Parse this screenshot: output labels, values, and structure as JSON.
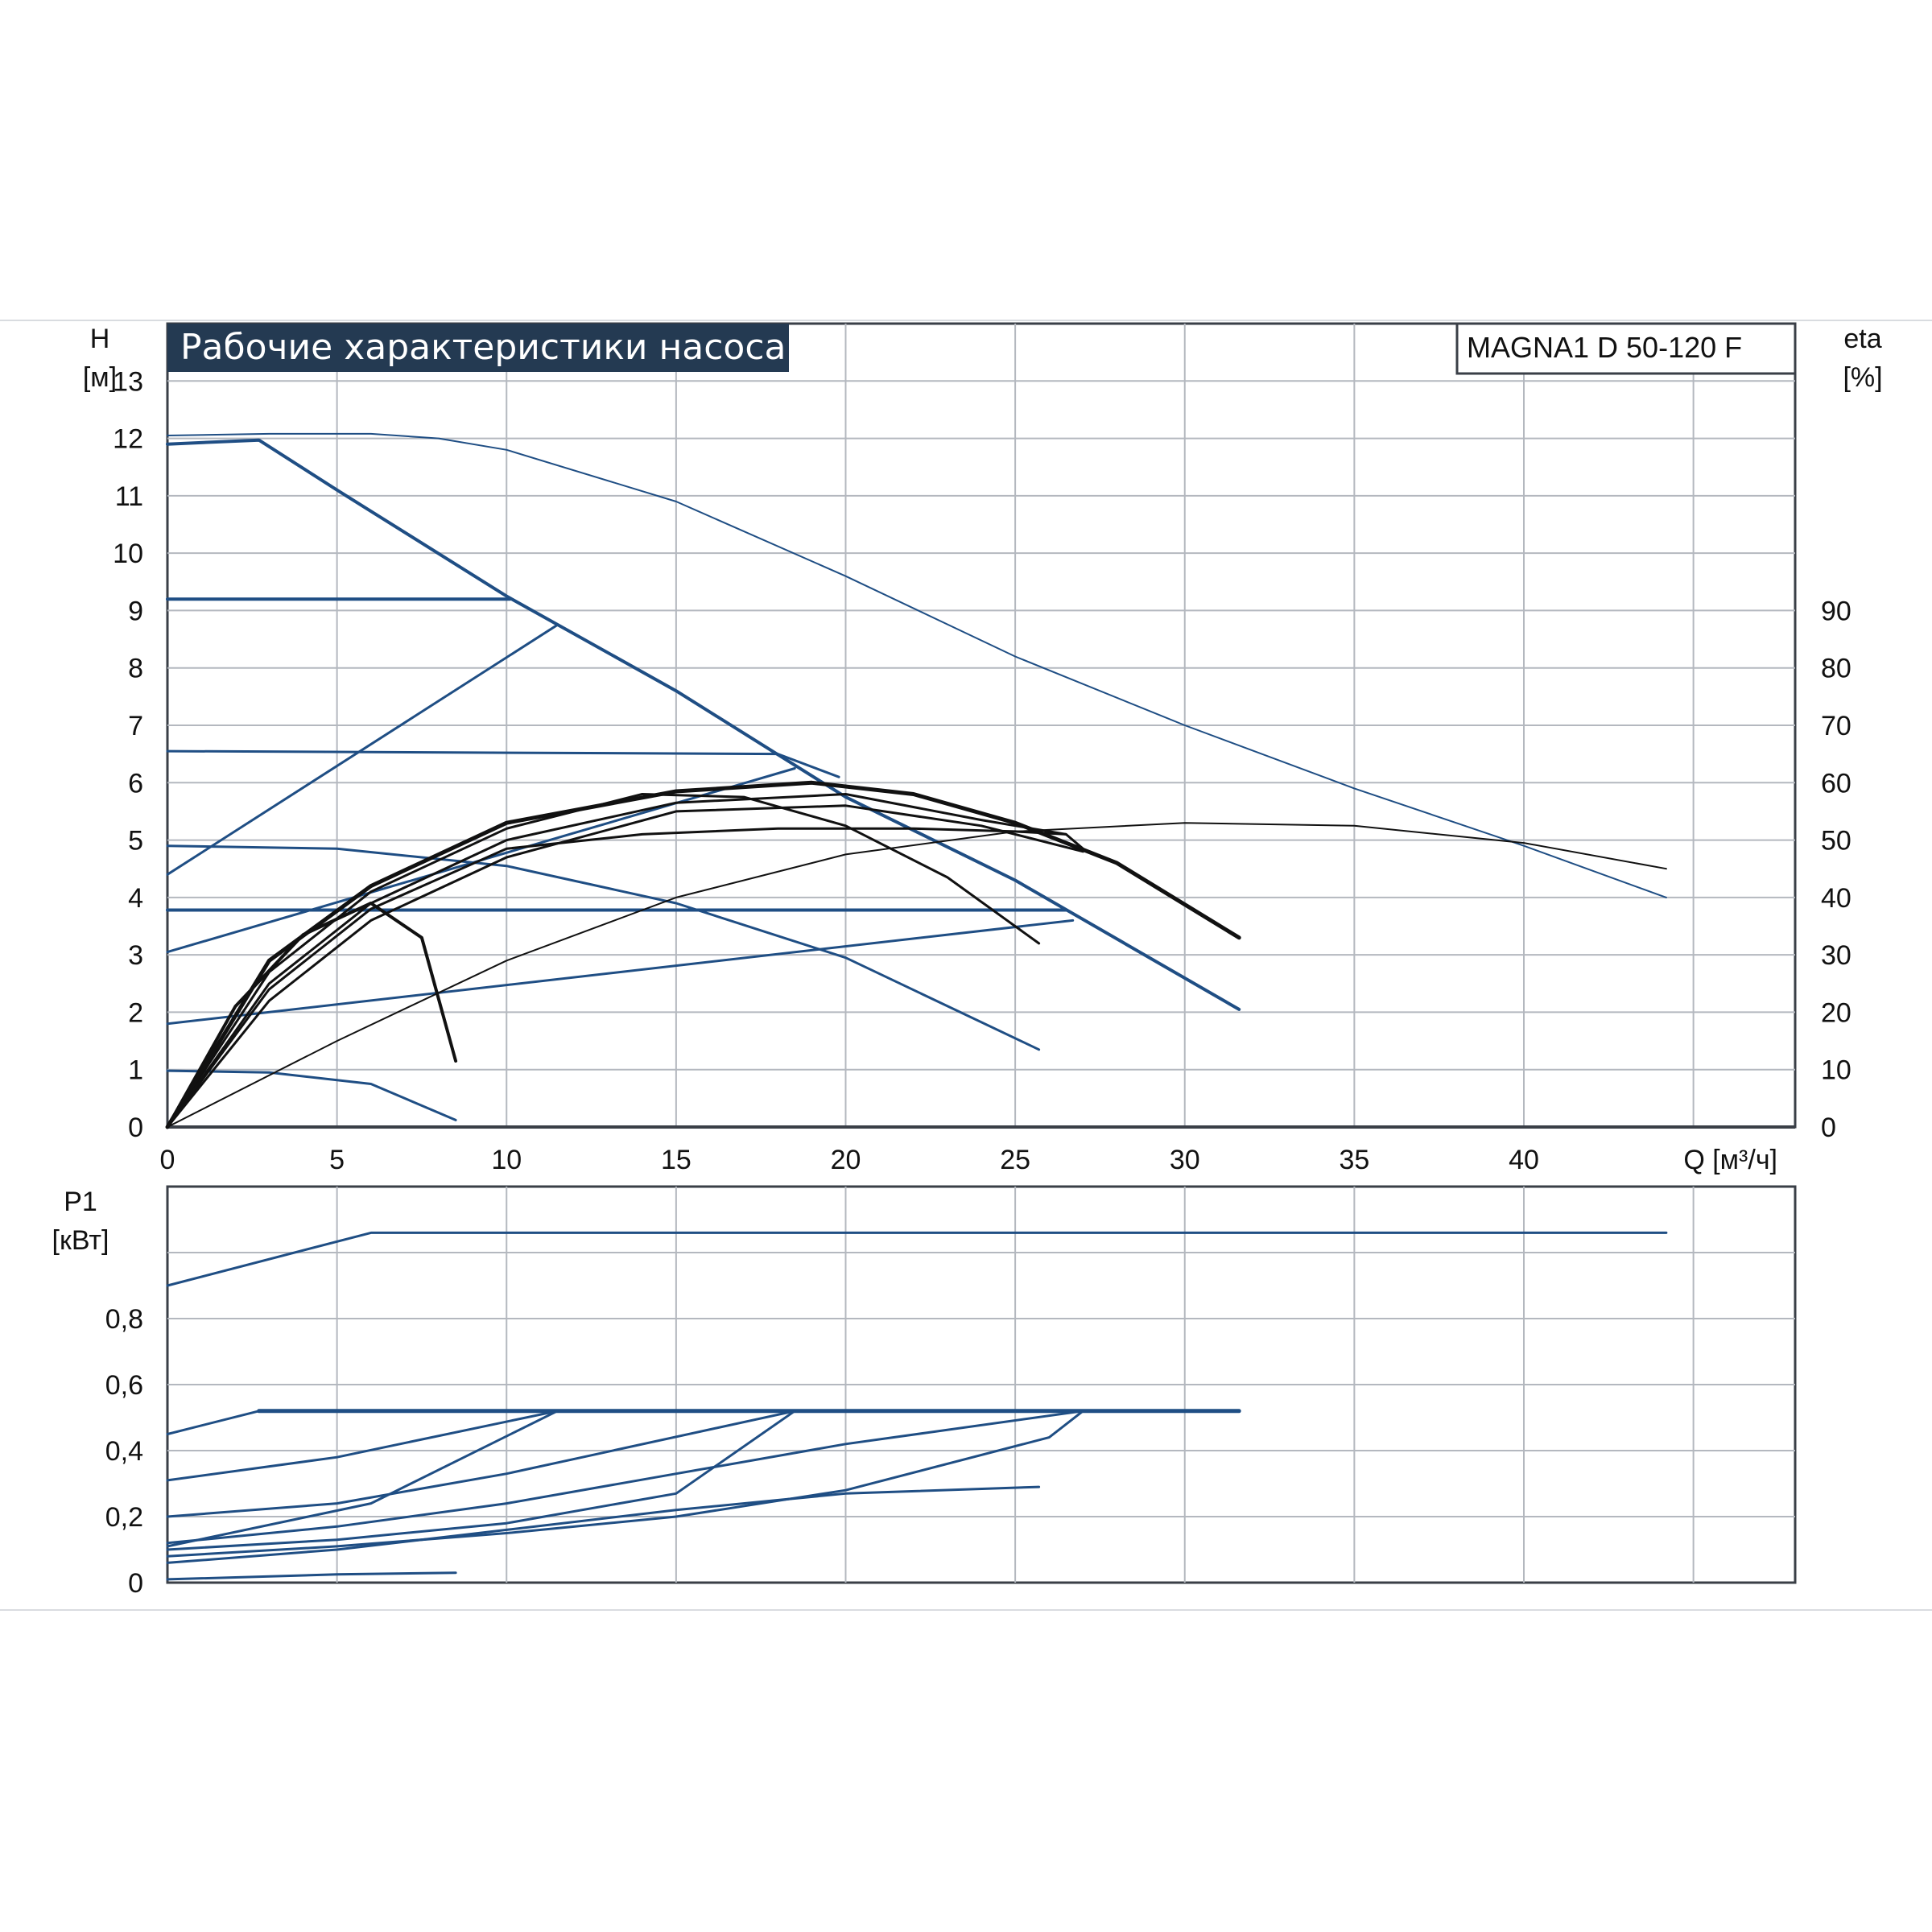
{
  "header": {
    "title": "Рабочие характеристики насоса",
    "model": "MAGNA1 D 50-120 F"
  },
  "colors": {
    "title_bg": "#243a52",
    "grid": "#b4b8bf",
    "frame": "#3a3f47",
    "blue": "#1f4e84",
    "black": "#111111"
  },
  "chart_data": [
    {
      "type": "line",
      "name": "head-curves",
      "xlabel": "Q [м³/ч]",
      "ylabel": "H [м]",
      "y2label": "eta [%]",
      "xlim": [
        0,
        48
      ],
      "ylim": [
        0,
        14
      ],
      "y2lim": [
        0,
        140
      ],
      "xticks": [
        "0",
        "5",
        "10",
        "15",
        "20",
        "25",
        "30",
        "35",
        "40"
      ],
      "yticks": [
        "0",
        "1",
        "2",
        "3",
        "4",
        "5",
        "6",
        "7",
        "8",
        "9",
        "10",
        "11",
        "12",
        "13"
      ],
      "y2ticks": [
        "0",
        "10",
        "20",
        "30",
        "40",
        "50",
        "60",
        "70",
        "80",
        "90"
      ],
      "grid": true,
      "series": [
        {
          "color": "blue",
          "width": 2,
          "points": [
            [
              0,
              12.05
            ],
            [
              3,
              12.08
            ],
            [
              6,
              12.08
            ],
            [
              8,
              12.0
            ],
            [
              10,
              11.8
            ],
            [
              15,
              10.9
            ],
            [
              20,
              9.6
            ],
            [
              25,
              8.2
            ],
            [
              30,
              7.0
            ],
            [
              35,
              5.9
            ],
            [
              40,
              4.9
            ],
            [
              44.2,
              4.0
            ]
          ]
        },
        {
          "color": "blue",
          "width": 4,
          "points": [
            [
              0,
              11.9
            ],
            [
              2.7,
              11.97
            ],
            [
              5,
              11.1
            ],
            [
              10,
              9.25
            ],
            [
              15,
              7.6
            ],
            [
              20,
              5.75
            ],
            [
              25,
              4.3
            ],
            [
              31.6,
              2.05
            ]
          ]
        },
        {
          "color": "blue",
          "width": 4,
          "points": [
            [
              0,
              9.2
            ],
            [
              10.1,
              9.2
            ]
          ]
        },
        {
          "color": "blue",
          "width": 3,
          "points": [
            [
              0,
              6.55
            ],
            [
              18,
              6.5
            ],
            [
              19.8,
              6.1
            ]
          ]
        },
        {
          "color": "blue",
          "width": 3,
          "points": [
            [
              0,
              4.9
            ],
            [
              5,
              4.85
            ],
            [
              10,
              4.55
            ],
            [
              15,
              3.9
            ],
            [
              20,
              2.95
            ],
            [
              25.7,
              1.35
            ]
          ]
        },
        {
          "color": "blue",
          "width": 4,
          "points": [
            [
              0,
              3.78
            ],
            [
              26.5,
              3.78
            ]
          ]
        },
        {
          "color": "blue",
          "width": 3,
          "points": [
            [
              0,
              0.98
            ],
            [
              3,
              0.95
            ],
            [
              6,
              0.75
            ],
            [
              8.5,
              0.12
            ]
          ]
        },
        {
          "color": "blue",
          "width": 3,
          "points": [
            [
              0,
              4.4
            ],
            [
              11.5,
              8.75
            ]
          ]
        },
        {
          "color": "blue",
          "width": 3,
          "points": [
            [
              0,
              3.05
            ],
            [
              18.5,
              6.25
            ]
          ]
        },
        {
          "color": "blue",
          "width": 3,
          "points": [
            [
              0,
              1.8
            ],
            [
              26.7,
              3.6
            ]
          ]
        },
        {
          "color": "black",
          "width": 4,
          "points": [
            [
              0,
              0
            ],
            [
              2,
              2.1
            ],
            [
              4,
              3.35
            ],
            [
              6,
              3.9
            ],
            [
              7.5,
              3.3
            ],
            [
              8.5,
              1.15
            ]
          ]
        },
        {
          "color": "black",
          "width": 3,
          "points": [
            [
              0,
              0
            ],
            [
              3,
              2.7
            ],
            [
              6,
              4.1
            ],
            [
              10,
              5.2
            ],
            [
              14,
              5.8
            ],
            [
              17,
              5.75
            ],
            [
              20,
              5.25
            ],
            [
              23,
              4.35
            ],
            [
              25.7,
              3.2
            ]
          ]
        },
        {
          "color": "black",
          "width": 3,
          "points": [
            [
              0,
              0
            ],
            [
              3,
              2.4
            ],
            [
              6,
              3.8
            ],
            [
              10,
              4.85
            ],
            [
              14,
              5.1
            ],
            [
              18,
              5.2
            ],
            [
              22,
              5.2
            ],
            [
              25,
              5.15
            ],
            [
              26.5,
              5.1
            ],
            [
              27,
              4.85
            ]
          ]
        },
        {
          "color": "black",
          "width": 5,
          "points": [
            [
              0,
              0
            ],
            [
              3,
              2.9
            ],
            [
              6,
              4.2
            ],
            [
              10,
              5.3
            ],
            [
              15,
              5.85
            ],
            [
              19,
              6.0
            ],
            [
              22,
              5.8
            ],
            [
              25,
              5.3
            ],
            [
              28,
              4.6
            ],
            [
              31.6,
              3.3
            ]
          ]
        },
        {
          "color": "black",
          "width": 3,
          "points": [
            [
              0,
              0
            ],
            [
              3,
              2.5
            ],
            [
              6,
              3.9
            ],
            [
              10,
              5.0
            ],
            [
              15,
              5.65
            ],
            [
              20,
              5.8
            ],
            [
              24,
              5.35
            ],
            [
              26.5,
              5.1
            ]
          ]
        },
        {
          "color": "black",
          "width": 3,
          "points": [
            [
              0,
              0
            ],
            [
              3,
              2.2
            ],
            [
              6,
              3.6
            ],
            [
              10,
              4.7
            ],
            [
              15,
              5.5
            ],
            [
              20,
              5.6
            ],
            [
              24,
              5.25
            ],
            [
              27,
              4.8
            ]
          ]
        },
        {
          "color": "black",
          "width": 2,
          "points": [
            [
              0,
              0
            ],
            [
              5,
              1.5
            ],
            [
              10,
              2.9
            ],
            [
              15,
              4.0
            ],
            [
              20,
              4.75
            ],
            [
              25,
              5.15
            ],
            [
              30,
              5.3
            ],
            [
              35,
              5.25
            ],
            [
              40,
              4.95
            ],
            [
              44.2,
              4.5
            ]
          ]
        }
      ]
    },
    {
      "type": "line",
      "name": "power-curves",
      "xlabel": "",
      "ylabel": "P1 [кВт]",
      "xlim": [
        0,
        48
      ],
      "ylim": [
        0,
        1.2
      ],
      "yticks": [
        "0",
        "0,2",
        "0,4",
        "0,6",
        "0,8"
      ],
      "grid": true,
      "series": [
        {
          "color": "blue",
          "width": 3,
          "points": [
            [
              0,
              0.9
            ],
            [
              6,
              1.06
            ],
            [
              44.2,
              1.06
            ]
          ]
        },
        {
          "color": "blue",
          "width": 5,
          "points": [
            [
              2.7,
              0.52
            ],
            [
              31.6,
              0.52
            ]
          ]
        },
        {
          "color": "blue",
          "width": 3,
          "points": [
            [
              0,
              0.45
            ],
            [
              2.7,
              0.52
            ]
          ]
        },
        {
          "color": "blue",
          "width": 3,
          "points": [
            [
              0,
              0.31
            ],
            [
              5,
              0.38
            ],
            [
              11.5,
              0.52
            ]
          ]
        },
        {
          "color": "blue",
          "width": 3,
          "points": [
            [
              0,
              0.2
            ],
            [
              5,
              0.24
            ],
            [
              10,
              0.33
            ],
            [
              18.5,
              0.52
            ]
          ]
        },
        {
          "color": "blue",
          "width": 3,
          "points": [
            [
              0,
              0.12
            ],
            [
              5,
              0.17
            ],
            [
              10,
              0.24
            ],
            [
              15,
              0.33
            ],
            [
              20,
              0.42
            ],
            [
              27,
              0.52
            ]
          ]
        },
        {
          "color": "blue",
          "width": 3,
          "points": [
            [
              0,
              0.11
            ],
            [
              6,
              0.24
            ],
            [
              11.5,
              0.52
            ]
          ]
        },
        {
          "color": "blue",
          "width": 3,
          "points": [
            [
              0,
              0.1
            ],
            [
              5,
              0.13
            ],
            [
              10,
              0.18
            ],
            [
              15,
              0.27
            ],
            [
              18.5,
              0.52
            ]
          ]
        },
        {
          "color": "blue",
          "width": 3,
          "points": [
            [
              0,
              0.08
            ],
            [
              5,
              0.11
            ],
            [
              10,
              0.15
            ],
            [
              15,
              0.2
            ],
            [
              20,
              0.28
            ],
            [
              26,
              0.44
            ],
            [
              27,
              0.52
            ]
          ]
        },
        {
          "color": "blue",
          "width": 3,
          "points": [
            [
              0,
              0.06
            ],
            [
              5,
              0.1
            ],
            [
              10,
              0.16
            ],
            [
              15,
              0.22
            ],
            [
              20,
              0.27
            ],
            [
              25.7,
              0.29
            ]
          ]
        },
        {
          "color": "blue",
          "width": 3,
          "points": [
            [
              0,
              0.01
            ],
            [
              5,
              0.025
            ],
            [
              8.5,
              0.03
            ]
          ]
        }
      ]
    }
  ]
}
